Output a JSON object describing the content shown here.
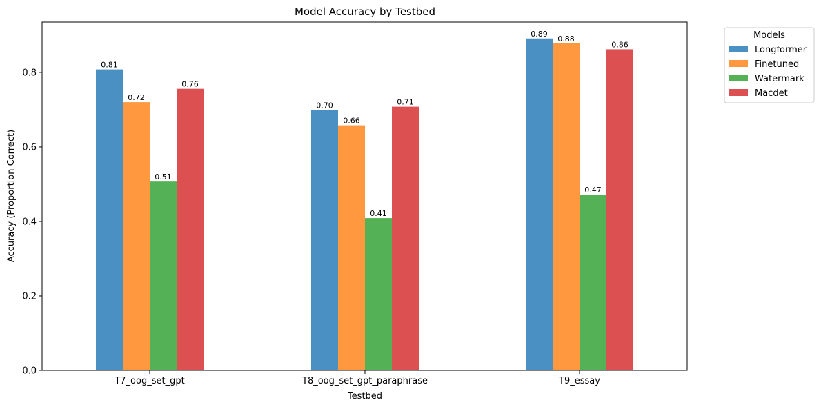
{
  "chart_data": {
    "type": "bar",
    "title": "Model Accuracy by Testbed",
    "xlabel": "Testbed",
    "ylabel": "Accuracy (Proportion Correct)",
    "categories": [
      "T7_oog_set_gpt",
      "T8_oog_set_gpt_paraphrase",
      "T9_essay"
    ],
    "ylim": [
      0,
      0.935
    ],
    "yticks": [
      0.0,
      0.2,
      0.4,
      0.6,
      0.8
    ],
    "ytick_labels": [
      "0.0",
      "0.2",
      "0.4",
      "0.6",
      "0.8"
    ],
    "grid": false,
    "legend": {
      "title": "Models",
      "placement": "outside-top-right"
    },
    "series": [
      {
        "name": "Longformer",
        "color": "#4a90c2",
        "values": [
          0.808,
          0.699,
          0.891
        ],
        "labels": [
          "0.81",
          "0.70",
          "0.89"
        ]
      },
      {
        "name": "Finetuned",
        "color": "#ff983e",
        "values": [
          0.72,
          0.658,
          0.878
        ],
        "labels": [
          "0.72",
          "0.66",
          "0.88"
        ]
      },
      {
        "name": "Watermark",
        "color": "#55b155",
        "values": [
          0.507,
          0.409,
          0.472
        ],
        "labels": [
          "0.51",
          "0.41",
          "0.47"
        ]
      },
      {
        "name": "Macdet",
        "color": "#dc5052",
        "values": [
          0.756,
          0.708,
          0.862
        ],
        "labels": [
          "0.76",
          "0.71",
          "0.86"
        ]
      }
    ]
  }
}
